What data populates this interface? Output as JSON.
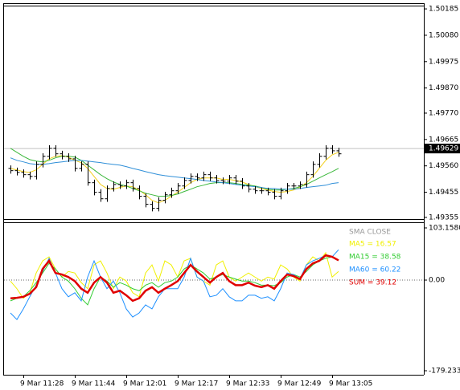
{
  "chart_data": [
    {
      "type": "ohlc",
      "open": [
        1.4955,
        1.49541,
        1.49534,
        1.49525,
        1.49518,
        1.49566,
        1.49598,
        1.4963,
        1.49608,
        1.49598,
        1.49588,
        1.4955,
        1.49566,
        1.49493,
        1.49455,
        1.49429,
        1.4947,
        1.49486,
        1.4948,
        1.49493,
        1.4947,
        1.49439,
        1.49407,
        1.49391,
        1.49423,
        1.49445,
        1.49461,
        1.4948,
        1.49502,
        1.49518,
        1.49512,
        1.49525,
        1.49512,
        1.49502,
        1.49499,
        1.49512,
        1.49499,
        1.4948,
        1.49467,
        1.49461,
        1.49461,
        1.49455,
        1.49439,
        1.49461,
        1.4948,
        1.4948,
        1.49486,
        1.49525,
        1.49566,
        1.49598,
        1.4963,
        1.4962
      ],
      "high": [
        1.49562,
        1.49553,
        1.49546,
        1.49537,
        1.49578,
        1.4961,
        1.49642,
        1.49642,
        1.4962,
        1.4961,
        1.496,
        1.49578,
        1.49578,
        1.49505,
        1.49467,
        1.49482,
        1.49498,
        1.49498,
        1.49505,
        1.49505,
        1.49482,
        1.49451,
        1.49419,
        1.49435,
        1.49457,
        1.49473,
        1.49492,
        1.49514,
        1.4953,
        1.4953,
        1.49537,
        1.49537,
        1.49524,
        1.49514,
        1.49524,
        1.49524,
        1.49511,
        1.49492,
        1.49479,
        1.49473,
        1.49473,
        1.49467,
        1.49473,
        1.49492,
        1.49492,
        1.49498,
        1.49537,
        1.49578,
        1.4961,
        1.49642,
        1.49642,
        1.49632
      ],
      "low": [
        1.49529,
        1.49522,
        1.49513,
        1.49506,
        1.49506,
        1.49554,
        1.49586,
        1.49596,
        1.49586,
        1.49576,
        1.49538,
        1.49538,
        1.49481,
        1.49443,
        1.49417,
        1.49417,
        1.49458,
        1.49468,
        1.49468,
        1.49458,
        1.49427,
        1.49395,
        1.49379,
        1.49379,
        1.49411,
        1.49433,
        1.49449,
        1.49468,
        1.4949,
        1.495,
        1.495,
        1.495,
        1.4949,
        1.49487,
        1.49487,
        1.49487,
        1.49468,
        1.49455,
        1.49449,
        1.49449,
        1.49443,
        1.49427,
        1.49427,
        1.49449,
        1.49468,
        1.49468,
        1.49474,
        1.49513,
        1.49554,
        1.49586,
        1.49608,
        1.49596
      ],
      "close": [
        1.49541,
        1.49534,
        1.49525,
        1.49518,
        1.49566,
        1.49598,
        1.4963,
        1.49608,
        1.49598,
        1.49588,
        1.4955,
        1.49566,
        1.49493,
        1.49455,
        1.49429,
        1.4947,
        1.49486,
        1.4948,
        1.49493,
        1.4947,
        1.49439,
        1.49407,
        1.49391,
        1.49423,
        1.49445,
        1.49461,
        1.4948,
        1.49502,
        1.49518,
        1.49512,
        1.49525,
        1.49512,
        1.49502,
        1.49499,
        1.49512,
        1.49499,
        1.4948,
        1.49467,
        1.49461,
        1.49461,
        1.49455,
        1.49439,
        1.49461,
        1.4948,
        1.4948,
        1.49486,
        1.49525,
        1.49566,
        1.49598,
        1.4963,
        1.4962,
        1.49608
      ],
      "color": "#000000",
      "series": [
        {
          "color": "#f2cf1b",
          "values": [
            1.4955,
            1.49544,
            1.49537,
            1.49534,
            1.49544,
            1.49566,
            1.49588,
            1.49598,
            1.49601,
            1.49595,
            1.49582,
            1.49573,
            1.4955,
            1.49518,
            1.49486,
            1.4947,
            1.49467,
            1.49474,
            1.4948,
            1.49477,
            1.49464,
            1.49445,
            1.49423,
            1.49413,
            1.49423,
            1.49439,
            1.49455,
            1.49474,
            1.49493,
            1.49506,
            1.49512,
            1.49512,
            1.49512,
            1.49506,
            1.49506,
            1.49502,
            1.49496,
            1.49486,
            1.49477,
            1.4947,
            1.49464,
            1.49458,
            1.49455,
            1.49458,
            1.49464,
            1.49474,
            1.49493,
            1.49518,
            1.4955,
            1.49582,
            1.49604,
            1.49614
          ]
        },
        {
          "color": "#3cb83c",
          "values": [
            1.4963,
            1.49614,
            1.49598,
            1.49585,
            1.49579,
            1.49576,
            1.49582,
            1.49592,
            1.49598,
            1.49598,
            1.49595,
            1.49582,
            1.49563,
            1.49544,
            1.49525,
            1.49509,
            1.49496,
            1.49486,
            1.4948,
            1.4947,
            1.49461,
            1.49451,
            1.49445,
            1.49439,
            1.49439,
            1.49442,
            1.49448,
            1.49458,
            1.49467,
            1.49477,
            1.49483,
            1.4949,
            1.49493,
            1.49493,
            1.49493,
            1.4949,
            1.49486,
            1.49483,
            1.4948,
            1.49474,
            1.49467,
            1.49464,
            1.49464,
            1.49467,
            1.4947,
            1.49477,
            1.49486,
            1.49499,
            1.49512,
            1.49525,
            1.49537,
            1.4955
          ]
        },
        {
          "color": "#2f8fd8",
          "values": [
            1.49592,
            1.49582,
            1.49576,
            1.49569,
            1.49566,
            1.49566,
            1.49569,
            1.49573,
            1.49576,
            1.49579,
            1.49582,
            1.49582,
            1.49579,
            1.49576,
            1.49573,
            1.49569,
            1.49566,
            1.49563,
            1.49557,
            1.4955,
            1.49544,
            1.49537,
            1.49531,
            1.49525,
            1.49521,
            1.49518,
            1.49515,
            1.49512,
            1.49509,
            1.49506,
            1.49502,
            1.49499,
            1.49496,
            1.49493,
            1.4949,
            1.49486,
            1.49483,
            1.4948,
            1.49477,
            1.49474,
            1.4947,
            1.4947,
            1.49467,
            1.49467,
            1.49467,
            1.4947,
            1.49474,
            1.49477,
            1.4948,
            1.49483,
            1.4949,
            1.49493
          ]
        }
      ],
      "current_price": 1.49629,
      "ylim": [
        1.49345,
        1.50198
      ],
      "yticks": [
        1.50185,
        {
          "value": 1.5008,
          "label": "1.50080"
        },
        1.49975,
        {
          "value": 1.4987,
          "label": "1.49870"
        },
        {
          "value": 1.4977,
          "label": "1.49770"
        },
        1.49665,
        {
          "value": 1.4956,
          "label": "1.49560"
        },
        1.49455,
        1.49355
      ]
    },
    {
      "type": "line",
      "title": "SMA CLOSE",
      "categories": [
        null,
        null,
        "9 Mar 11:28",
        null,
        null,
        null,
        null,
        null,
        null,
        null,
        "9 Mar 11:44",
        null,
        null,
        null,
        null,
        null,
        null,
        null,
        "9 Mar 12:01",
        null,
        null,
        null,
        null,
        null,
        null,
        null,
        "9 Mar 12:17",
        null,
        null,
        null,
        null,
        null,
        null,
        null,
        "9 Mar 12:33",
        null,
        null,
        null,
        null,
        null,
        null,
        null,
        "9 Mar 12:49",
        null,
        null,
        null,
        null,
        null,
        null,
        null,
        "9 Mar 13:05",
        null
      ],
      "series": [
        {
          "name": "MA5 = 16.57",
          "color": "#f0f000",
          "width": 1,
          "values": [
            -2,
            -17,
            -36,
            -25,
            14,
            38,
            46,
            22,
            6,
            17,
            14,
            -5,
            -17,
            30,
            38,
            14,
            -17,
            6,
            -2,
            -25,
            -33,
            14,
            30,
            -2,
            38,
            30,
            6,
            38,
            43,
            6,
            -2,
            -10,
            30,
            38,
            6,
            -2,
            6,
            14,
            6,
            -2,
            6,
            2,
            30,
            22,
            6,
            -2,
            30,
            46,
            38,
            54,
            6,
            17
          ]
        },
        {
          "name": "MA15 = 38.58",
          "color": "#32cd32",
          "width": 1,
          "values": [
            -41,
            -36,
            -33,
            -21,
            -5,
            14,
            33,
            22,
            6,
            -2,
            -17,
            -36,
            -49,
            -17,
            6,
            -2,
            -14,
            -5,
            -10,
            -17,
            -21,
            -10,
            -5,
            -14,
            -5,
            -2,
            6,
            22,
            30,
            22,
            14,
            2,
            6,
            11,
            6,
            2,
            -2,
            -2,
            -5,
            -10,
            -10,
            -11,
            -5,
            6,
            11,
            6,
            17,
            30,
            38,
            43,
            46,
            39
          ]
        },
        {
          "name": "MA60 = 60.22",
          "color": "#1e90ff",
          "width": 1,
          "values": [
            -65,
            -78,
            -57,
            -33,
            -10,
            17,
            43,
            14,
            -17,
            -33,
            -25,
            -41,
            6,
            38,
            6,
            -17,
            -2,
            -25,
            -57,
            -73,
            -65,
            -49,
            -57,
            -33,
            -17,
            -17,
            -17,
            6,
            43,
            6,
            -2,
            -33,
            -30,
            -17,
            -33,
            -41,
            -41,
            -30,
            -30,
            -36,
            -33,
            -41,
            -17,
            14,
            11,
            2,
            30,
            38,
            43,
            49,
            46,
            60
          ]
        },
        {
          "name": "SUM = 39.12",
          "color": "#e00000",
          "width": 2.5,
          "values": [
            -36,
            -35,
            -33,
            -27,
            -14,
            22,
            38,
            14,
            11,
            6,
            -2,
            -17,
            -25,
            -5,
            6,
            -5,
            -25,
            -21,
            -30,
            -41,
            -36,
            -21,
            -14,
            -25,
            -17,
            -10,
            -2,
            14,
            30,
            17,
            6,
            -5,
            6,
            14,
            -2,
            -10,
            -10,
            -5,
            -11,
            -14,
            -10,
            -17,
            -2,
            11,
            8,
            2,
            22,
            33,
            38,
            49,
            46,
            39
          ]
        }
      ],
      "zero_line": true,
      "ylim": [
        -179.233,
        103.158
      ],
      "yticks": [
        {
          "value": 103.158,
          "label": "103.1580"
        },
        {
          "value": 0,
          "label": "0.00"
        },
        -179.233
      ]
    }
  ]
}
